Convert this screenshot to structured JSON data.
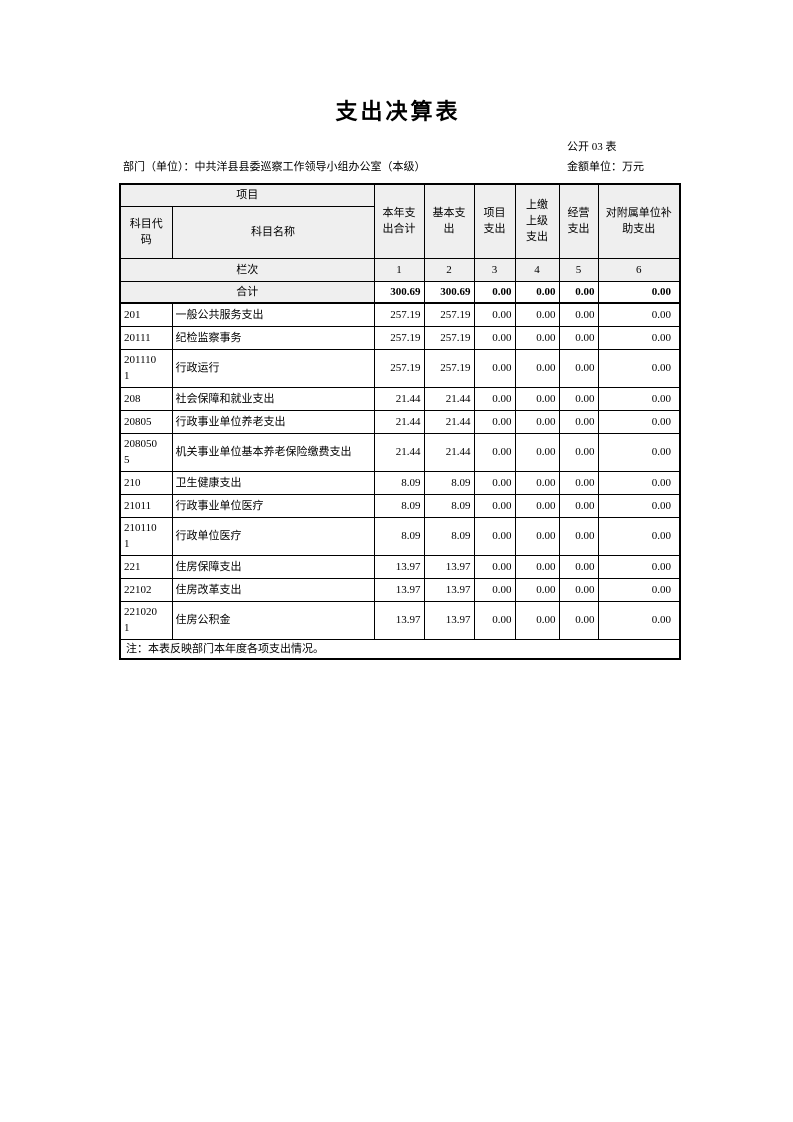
{
  "page": {
    "title": "支出决算表",
    "table_no": "公开 03 表",
    "department": "部门（单位）：中共洋县县委巡察工作领导小组办公室（本级）",
    "unit": "金额单位：万元"
  },
  "table": {
    "header": {
      "project": "项目",
      "code": "科目代\n码",
      "name": "科目名称",
      "cols": [
        "本年支\n出合计",
        "基本支\n出",
        "项目\n支出",
        "上缴\n上级\n支出",
        "经营\n支出",
        "对附属单位补\n助支出"
      ]
    },
    "lanci": {
      "label": "栏次",
      "numbers": [
        "1",
        "2",
        "3",
        "4",
        "5",
        "6"
      ]
    },
    "total_row": {
      "label": "合计",
      "values": [
        "300.69",
        "300.69",
        "0.00",
        "0.00",
        "0.00",
        "0.00"
      ]
    },
    "rows": [
      {
        "code": "201",
        "name": "一般公共服务支出",
        "values": [
          "257.19",
          "257.19",
          "0.00",
          "0.00",
          "0.00",
          "0.00"
        ]
      },
      {
        "code": "20111",
        "name": "纪检监察事务",
        "values": [
          "257.19",
          "257.19",
          "0.00",
          "0.00",
          "0.00",
          "0.00"
        ]
      },
      {
        "code": "2011101",
        "name": "行政运行",
        "values": [
          "257.19",
          "257.19",
          "0.00",
          "0.00",
          "0.00",
          "0.00"
        ]
      },
      {
        "code": "208",
        "name": "社会保障和就业支出",
        "values": [
          "21.44",
          "21.44",
          "0.00",
          "0.00",
          "0.00",
          "0.00"
        ]
      },
      {
        "code": "20805",
        "name": "行政事业单位养老支出",
        "values": [
          "21.44",
          "21.44",
          "0.00",
          "0.00",
          "0.00",
          "0.00"
        ]
      },
      {
        "code": "2080505",
        "name": "机关事业单位基本养老保险缴费支出",
        "values": [
          "21.44",
          "21.44",
          "0.00",
          "0.00",
          "0.00",
          "0.00"
        ]
      },
      {
        "code": "210",
        "name": "卫生健康支出",
        "values": [
          "8.09",
          "8.09",
          "0.00",
          "0.00",
          "0.00",
          "0.00"
        ]
      },
      {
        "code": "21011",
        "name": "行政事业单位医疗",
        "values": [
          "8.09",
          "8.09",
          "0.00",
          "0.00",
          "0.00",
          "0.00"
        ]
      },
      {
        "code": "2101101",
        "name": "行政单位医疗",
        "values": [
          "8.09",
          "8.09",
          "0.00",
          "0.00",
          "0.00",
          "0.00"
        ]
      },
      {
        "code": "221",
        "name": "住房保障支出",
        "values": [
          "13.97",
          "13.97",
          "0.00",
          "0.00",
          "0.00",
          "0.00"
        ]
      },
      {
        "code": "22102",
        "name": "住房改革支出",
        "values": [
          "13.97",
          "13.97",
          "0.00",
          "0.00",
          "0.00",
          "0.00"
        ]
      },
      {
        "code": "2210201",
        "name": "住房公积金",
        "values": [
          "13.97",
          "13.97",
          "0.00",
          "0.00",
          "0.00",
          "0.00"
        ]
      }
    ],
    "note": "注：本表反映部门本年度各项支出情况。"
  }
}
